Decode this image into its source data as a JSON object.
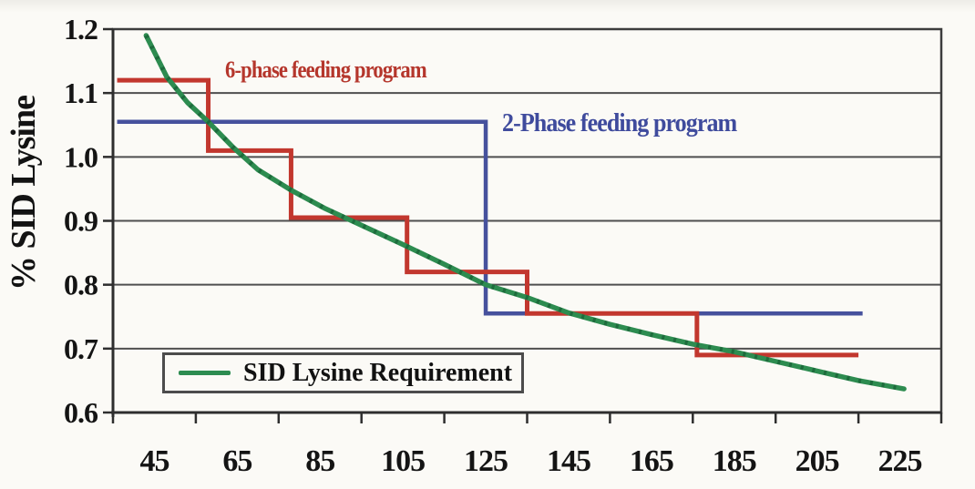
{
  "figure": {
    "background_color": "#fbfaf6"
  },
  "chart_data": {
    "type": "line",
    "title": "",
    "xlabel": "",
    "ylabel": "% SID Lysine",
    "xlim": [
      35,
      235
    ],
    "ylim": [
      0.6,
      1.2
    ],
    "x_tick_values": [
      45,
      65,
      85,
      105,
      125,
      145,
      165,
      185,
      205,
      225
    ],
    "x_tick_labels": [
      "45",
      "65",
      "85",
      "105",
      "125",
      "145",
      "165",
      "185",
      "205",
      "225"
    ],
    "x_boundary_tick_values": [
      35,
      55,
      75,
      95,
      115,
      135,
      155,
      175,
      195,
      215,
      235
    ],
    "y_tick_values": [
      1.2,
      1.1,
      1.0,
      0.9,
      0.8,
      0.7,
      0.6
    ],
    "y_tick_labels": [
      "1.2",
      "1.1",
      "1.0",
      "0.9",
      "0.8",
      "0.7",
      "0.6"
    ],
    "grid": {
      "horizontal": true,
      "vertical": false
    },
    "colors": {
      "grid": "#4f4f4f",
      "axis": "#2e2e2e",
      "tick_text": "#141414",
      "requirement_green": "#2d8c50",
      "requirement_green_dark": "#1d6b3c",
      "six_phase_red": "#c2372e",
      "two_phase_blue": "#46519d"
    },
    "series": [
      {
        "name": "SID Lysine Requirement",
        "style": "smooth-curve",
        "color": "#2d8c50",
        "points": [
          [
            43,
            1.19
          ],
          [
            48,
            1.125
          ],
          [
            53,
            1.085
          ],
          [
            58,
            1.055
          ],
          [
            64,
            1.015
          ],
          [
            70,
            0.98
          ],
          [
            78,
            0.948
          ],
          [
            86,
            0.92
          ],
          [
            95,
            0.893
          ],
          [
            105,
            0.863
          ],
          [
            115,
            0.832
          ],
          [
            125,
            0.8
          ],
          [
            135,
            0.78
          ],
          [
            145,
            0.756
          ],
          [
            155,
            0.738
          ],
          [
            165,
            0.722
          ],
          [
            175,
            0.707
          ],
          [
            185,
            0.695
          ],
          [
            195,
            0.68
          ],
          [
            205,
            0.665
          ],
          [
            215,
            0.65
          ],
          [
            226,
            0.637
          ]
        ]
      },
      {
        "name": "6-phase feeding program",
        "style": "step",
        "color": "#c2372e",
        "phases": [
          {
            "start": 36,
            "end": 58,
            "level": 1.12
          },
          {
            "start": 58,
            "end": 78,
            "level": 1.01
          },
          {
            "start": 78,
            "end": 106,
            "level": 0.905
          },
          {
            "start": 106,
            "end": 135,
            "level": 0.82
          },
          {
            "start": 135,
            "end": 176,
            "level": 0.755
          },
          {
            "start": 176,
            "end": 215,
            "level": 0.69
          }
        ]
      },
      {
        "name": "2-Phase feeding program",
        "style": "step",
        "color": "#46519d",
        "phases": [
          {
            "start": 36,
            "end": 125,
            "level": 1.055
          },
          {
            "start": 125,
            "end": 216,
            "level": 0.755
          }
        ]
      }
    ],
    "annotations": [
      {
        "text": "6-phase feeding program",
        "color": "#b5362c"
      },
      {
        "text": "2-Phase feeding program",
        "color": "#3f4b9d"
      }
    ],
    "legend": {
      "label": "SID Lysine Requirement",
      "line_color": "#2d8c50",
      "position": "inside-bottom-left"
    }
  }
}
